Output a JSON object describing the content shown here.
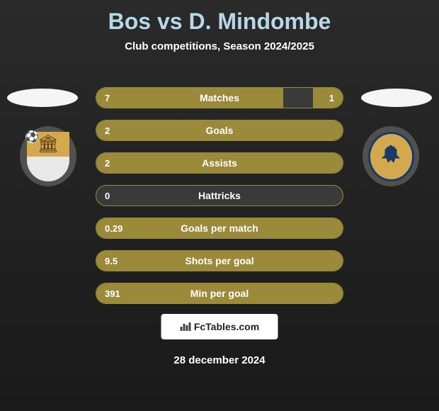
{
  "title": {
    "player1": "Bos",
    "vs": "vs",
    "player2": "D. Mindombe"
  },
  "subtitle": "Club competitions, Season 2024/2025",
  "colors": {
    "bar_fill": "#9a8a3a",
    "bar_border": "#9a8a3a",
    "bar_bg": "#3a3a3a",
    "text": "#ffffff",
    "title": "#b8d8e8",
    "page_bg_top": "#2a2a2a",
    "page_bg_bottom": "#1a1a1a",
    "badge_left_top": "#d4a94e",
    "badge_left_bottom": "#e8e8e8",
    "badge_right_bg": "#d4a94e",
    "badge_right_border": "#1a3a6a"
  },
  "stats": [
    {
      "label": "Matches",
      "left_val": "7",
      "right_val": "1",
      "left_pct": 76,
      "right_pct": 12
    },
    {
      "label": "Goals",
      "left_val": "2",
      "right_val": "",
      "left_pct": 100,
      "right_pct": 0
    },
    {
      "label": "Assists",
      "left_val": "2",
      "right_val": "",
      "left_pct": 100,
      "right_pct": 0
    },
    {
      "label": "Hattricks",
      "left_val": "0",
      "right_val": "",
      "left_pct": 0,
      "right_pct": 0
    },
    {
      "label": "Goals per match",
      "left_val": "0.29",
      "right_val": "",
      "left_pct": 100,
      "right_pct": 0
    },
    {
      "label": "Shots per goal",
      "left_val": "9.5",
      "right_val": "",
      "left_pct": 100,
      "right_pct": 0
    },
    {
      "label": "Min per goal",
      "left_val": "391",
      "right_val": "",
      "left_pct": 100,
      "right_pct": 0
    }
  ],
  "footer": {
    "brand": "FcTables.com",
    "date": "28 december 2024"
  },
  "icons": {
    "club_left": "castle",
    "club_right": "eagle",
    "ball": "⚽",
    "chart": "📊"
  }
}
